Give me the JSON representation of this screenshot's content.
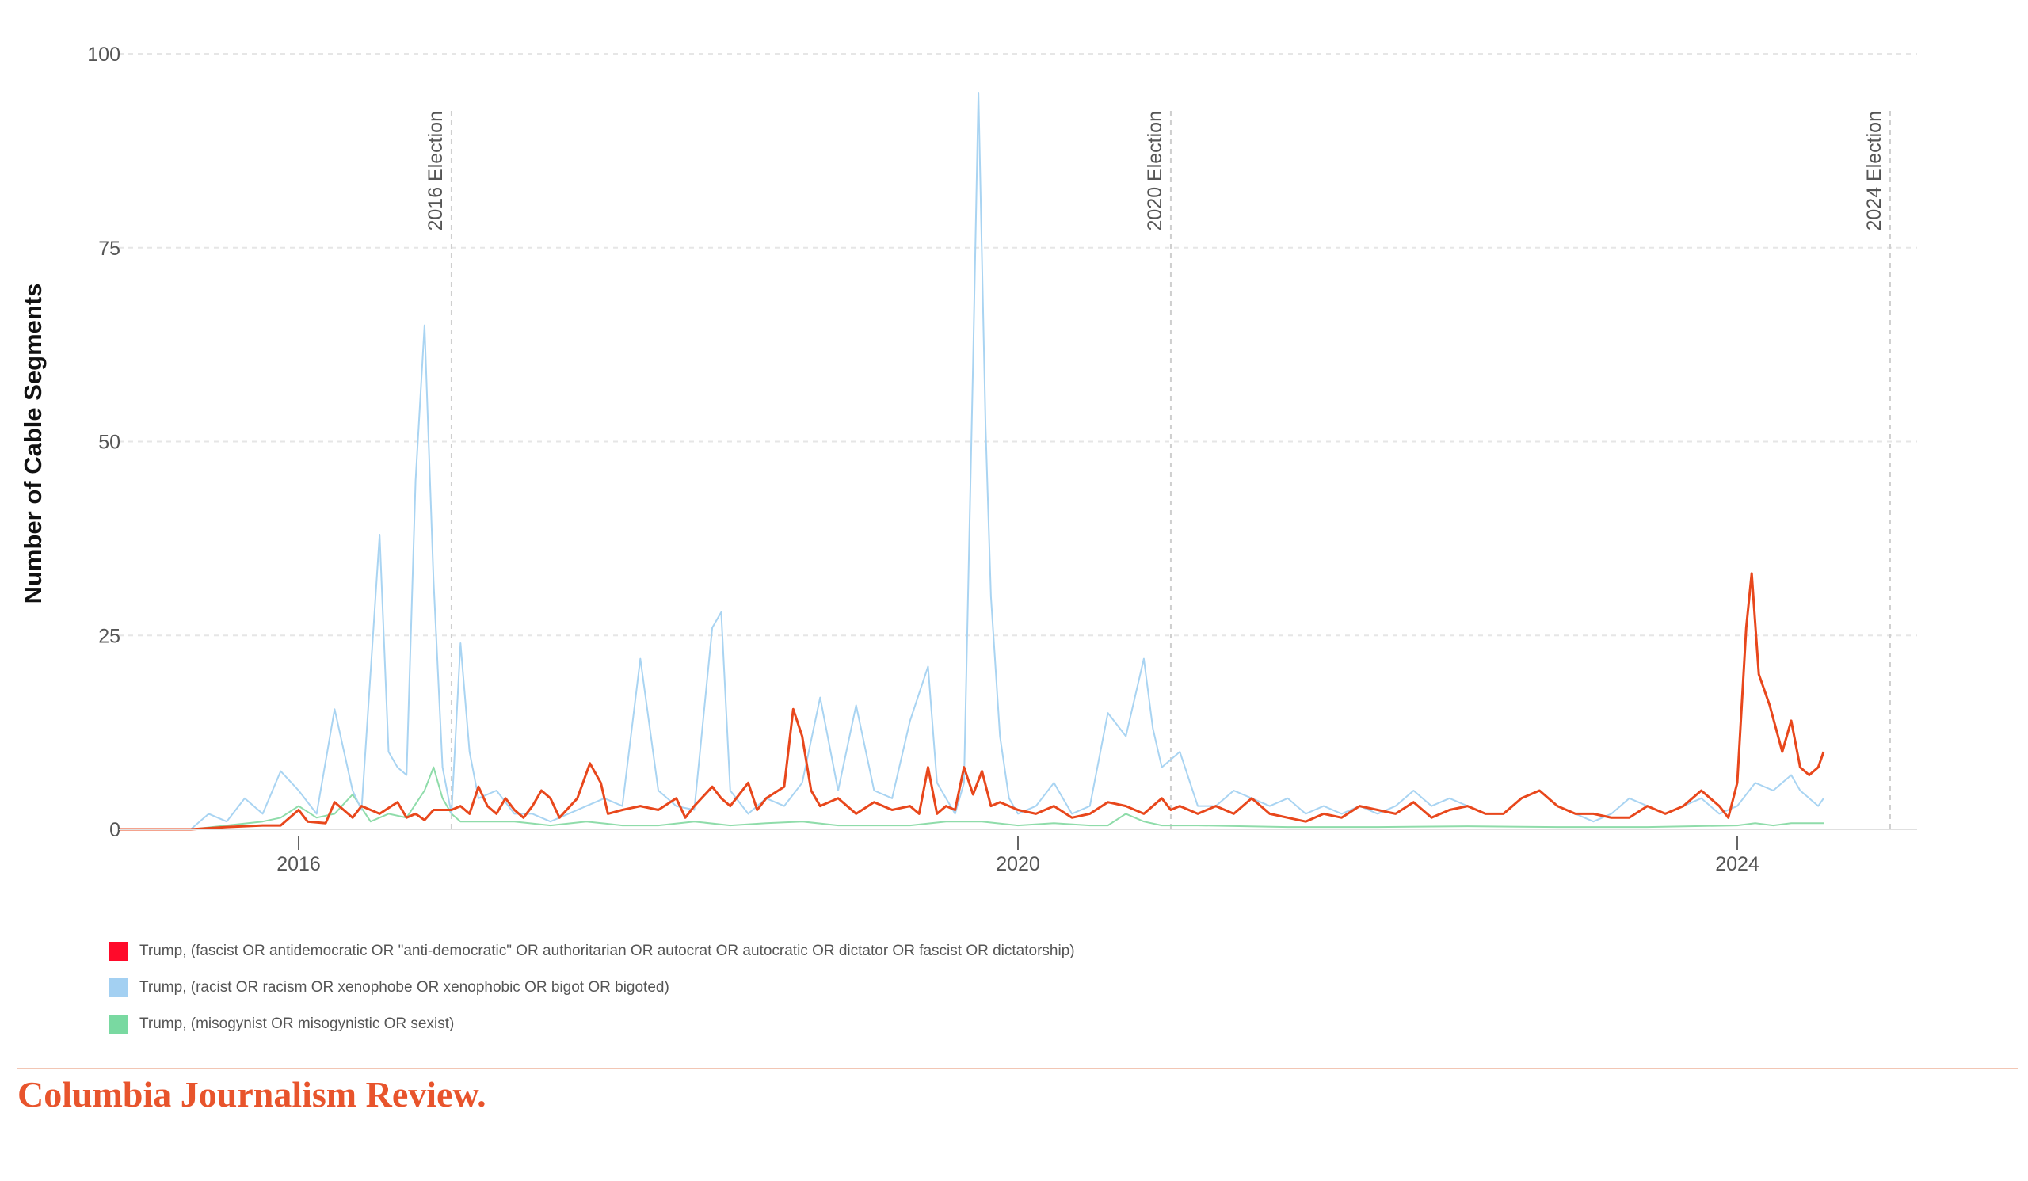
{
  "chart_data": {
    "type": "line",
    "title": "",
    "xlabel": "",
    "ylabel": "Number of Cable Segments",
    "ylim": [
      0,
      100
    ],
    "xlim": [
      2015.0,
      2025.0
    ],
    "y_ticks": [
      0,
      25,
      50,
      75,
      100
    ],
    "x_ticks": [
      {
        "value": 2016,
        "label": "2016"
      },
      {
        "value": 2020,
        "label": "2020"
      },
      {
        "value": 2024,
        "label": "2024"
      }
    ],
    "grid": "horizontal dashed",
    "annotations": [
      {
        "x": 2016.85,
        "label": "2016 Election"
      },
      {
        "x": 2020.85,
        "label": "2020 Election"
      },
      {
        "x": 2024.85,
        "label": "2024 Election"
      }
    ],
    "legend_position": "bottom-left",
    "series": [
      {
        "name": "Trump, (fascist OR antidemocratic OR \"anti-democratic\" OR authoritarian OR autocrat OR autocratic OR dictator OR fascist OR dictatorship)",
        "color": "#e8471c",
        "legend_color": "#ff0a2a",
        "points": [
          [
            2015.0,
            0
          ],
          [
            2015.4,
            0
          ],
          [
            2015.6,
            0.3
          ],
          [
            2015.8,
            0.5
          ],
          [
            2015.9,
            0.5
          ],
          [
            2016.0,
            2.5
          ],
          [
            2016.05,
            1
          ],
          [
            2016.15,
            0.8
          ],
          [
            2016.2,
            3.5
          ],
          [
            2016.3,
            1.5
          ],
          [
            2016.35,
            3
          ],
          [
            2016.45,
            2
          ],
          [
            2016.55,
            3.5
          ],
          [
            2016.6,
            1.5
          ],
          [
            2016.65,
            2
          ],
          [
            2016.7,
            1.2
          ],
          [
            2016.75,
            2.5
          ],
          [
            2016.85,
            2.5
          ],
          [
            2016.9,
            3
          ],
          [
            2016.95,
            2
          ],
          [
            2017.0,
            5.5
          ],
          [
            2017.05,
            3
          ],
          [
            2017.1,
            2
          ],
          [
            2017.15,
            4
          ],
          [
            2017.2,
            2.5
          ],
          [
            2017.25,
            1.5
          ],
          [
            2017.3,
            3
          ],
          [
            2017.35,
            5
          ],
          [
            2017.4,
            4
          ],
          [
            2017.45,
            1.5
          ],
          [
            2017.55,
            4
          ],
          [
            2017.62,
            8.5
          ],
          [
            2017.68,
            6
          ],
          [
            2017.72,
            2
          ],
          [
            2017.8,
            2.5
          ],
          [
            2017.9,
            3
          ],
          [
            2018.0,
            2.5
          ],
          [
            2018.1,
            4
          ],
          [
            2018.15,
            1.5
          ],
          [
            2018.2,
            3
          ],
          [
            2018.3,
            5.5
          ],
          [
            2018.35,
            4
          ],
          [
            2018.4,
            3
          ],
          [
            2018.5,
            6
          ],
          [
            2018.55,
            2.5
          ],
          [
            2018.6,
            4
          ],
          [
            2018.7,
            5.5
          ],
          [
            2018.75,
            15.5
          ],
          [
            2018.8,
            12
          ],
          [
            2018.85,
            5
          ],
          [
            2018.9,
            3
          ],
          [
            2019.0,
            4
          ],
          [
            2019.1,
            2
          ],
          [
            2019.2,
            3.5
          ],
          [
            2019.3,
            2.5
          ],
          [
            2019.4,
            3
          ],
          [
            2019.45,
            2
          ],
          [
            2019.5,
            8
          ],
          [
            2019.55,
            2
          ],
          [
            2019.6,
            3
          ],
          [
            2019.65,
            2.5
          ],
          [
            2019.7,
            8
          ],
          [
            2019.75,
            4.5
          ],
          [
            2019.8,
            7.5
          ],
          [
            2019.85,
            3
          ],
          [
            2019.9,
            3.5
          ],
          [
            2020.0,
            2.5
          ],
          [
            2020.1,
            2
          ],
          [
            2020.2,
            3
          ],
          [
            2020.3,
            1.5
          ],
          [
            2020.4,
            2
          ],
          [
            2020.5,
            3.5
          ],
          [
            2020.6,
            3
          ],
          [
            2020.7,
            2
          ],
          [
            2020.8,
            4
          ],
          [
            2020.85,
            2.5
          ],
          [
            2020.9,
            3
          ],
          [
            2021.0,
            2
          ],
          [
            2021.1,
            3
          ],
          [
            2021.2,
            2
          ],
          [
            2021.3,
            4
          ],
          [
            2021.4,
            2
          ],
          [
            2021.5,
            1.5
          ],
          [
            2021.6,
            1
          ],
          [
            2021.7,
            2
          ],
          [
            2021.8,
            1.5
          ],
          [
            2021.9,
            3
          ],
          [
            2022.0,
            2.5
          ],
          [
            2022.1,
            2
          ],
          [
            2022.2,
            3.5
          ],
          [
            2022.3,
            1.5
          ],
          [
            2022.4,
            2.5
          ],
          [
            2022.5,
            3
          ],
          [
            2022.6,
            2
          ],
          [
            2022.7,
            2
          ],
          [
            2022.8,
            4
          ],
          [
            2022.9,
            5
          ],
          [
            2023.0,
            3
          ],
          [
            2023.1,
            2
          ],
          [
            2023.2,
            2
          ],
          [
            2023.3,
            1.5
          ],
          [
            2023.4,
            1.5
          ],
          [
            2023.5,
            3
          ],
          [
            2023.6,
            2
          ],
          [
            2023.7,
            3
          ],
          [
            2023.8,
            5
          ],
          [
            2023.9,
            3
          ],
          [
            2023.95,
            1.5
          ],
          [
            2024.0,
            6
          ],
          [
            2024.05,
            26
          ],
          [
            2024.08,
            33
          ],
          [
            2024.12,
            20
          ],
          [
            2024.18,
            16
          ],
          [
            2024.25,
            10
          ],
          [
            2024.3,
            14
          ],
          [
            2024.35,
            8
          ],
          [
            2024.4,
            7
          ],
          [
            2024.45,
            8
          ],
          [
            2024.48,
            10
          ]
        ]
      },
      {
        "name": "Trump, (racist OR racism OR xenophobe OR xenophobic OR bigot OR bigoted)",
        "color": "#a9d4f2",
        "legend_color": "#a3d0f2",
        "points": [
          [
            2015.0,
            0
          ],
          [
            2015.4,
            0
          ],
          [
            2015.5,
            2
          ],
          [
            2015.6,
            1
          ],
          [
            2015.7,
            4
          ],
          [
            2015.8,
            2
          ],
          [
            2015.9,
            7.5
          ],
          [
            2016.0,
            5
          ],
          [
            2016.1,
            2
          ],
          [
            2016.2,
            15.5
          ],
          [
            2016.3,
            5
          ],
          [
            2016.35,
            2.5
          ],
          [
            2016.45,
            38
          ],
          [
            2016.5,
            10
          ],
          [
            2016.55,
            8
          ],
          [
            2016.6,
            7
          ],
          [
            2016.65,
            45
          ],
          [
            2016.7,
            65
          ],
          [
            2016.75,
            32
          ],
          [
            2016.8,
            8
          ],
          [
            2016.85,
            2
          ],
          [
            2016.9,
            24
          ],
          [
            2016.95,
            10
          ],
          [
            2017.0,
            4
          ],
          [
            2017.1,
            5
          ],
          [
            2017.2,
            2
          ],
          [
            2017.3,
            2
          ],
          [
            2017.4,
            1
          ],
          [
            2017.5,
            2
          ],
          [
            2017.6,
            3
          ],
          [
            2017.7,
            4
          ],
          [
            2017.8,
            3
          ],
          [
            2017.9,
            22
          ],
          [
            2018.0,
            5
          ],
          [
            2018.1,
            3
          ],
          [
            2018.2,
            2.5
          ],
          [
            2018.3,
            26
          ],
          [
            2018.35,
            28
          ],
          [
            2018.4,
            5
          ],
          [
            2018.5,
            2
          ],
          [
            2018.6,
            4
          ],
          [
            2018.7,
            3
          ],
          [
            2018.8,
            6
          ],
          [
            2018.9,
            17
          ],
          [
            2019.0,
            5
          ],
          [
            2019.1,
            16
          ],
          [
            2019.2,
            5
          ],
          [
            2019.3,
            4
          ],
          [
            2019.4,
            14
          ],
          [
            2019.5,
            21
          ],
          [
            2019.55,
            6
          ],
          [
            2019.6,
            4
          ],
          [
            2019.65,
            2
          ],
          [
            2019.7,
            6
          ],
          [
            2019.75,
            60
          ],
          [
            2019.78,
            95
          ],
          [
            2019.82,
            52
          ],
          [
            2019.85,
            30
          ],
          [
            2019.9,
            12
          ],
          [
            2019.95,
            4
          ],
          [
            2020.0,
            2
          ],
          [
            2020.1,
            3
          ],
          [
            2020.2,
            6
          ],
          [
            2020.3,
            2
          ],
          [
            2020.4,
            3
          ],
          [
            2020.5,
            15
          ],
          [
            2020.6,
            12
          ],
          [
            2020.7,
            22
          ],
          [
            2020.75,
            13
          ],
          [
            2020.8,
            8
          ],
          [
            2020.9,
            10
          ],
          [
            2021.0,
            3
          ],
          [
            2021.1,
            3
          ],
          [
            2021.2,
            5
          ],
          [
            2021.3,
            4
          ],
          [
            2021.4,
            3
          ],
          [
            2021.5,
            4
          ],
          [
            2021.6,
            2
          ],
          [
            2021.7,
            3
          ],
          [
            2021.8,
            2
          ],
          [
            2021.9,
            3
          ],
          [
            2022.0,
            2
          ],
          [
            2022.1,
            3
          ],
          [
            2022.2,
            5
          ],
          [
            2022.3,
            3
          ],
          [
            2022.4,
            4
          ],
          [
            2022.5,
            3
          ],
          [
            2022.6,
            2
          ],
          [
            2022.7,
            2
          ],
          [
            2022.8,
            4
          ],
          [
            2022.9,
            5
          ],
          [
            2023.0,
            3
          ],
          [
            2023.1,
            2
          ],
          [
            2023.2,
            1
          ],
          [
            2023.3,
            2
          ],
          [
            2023.4,
            4
          ],
          [
            2023.5,
            3
          ],
          [
            2023.6,
            2
          ],
          [
            2023.7,
            3
          ],
          [
            2023.8,
            4
          ],
          [
            2023.9,
            2
          ],
          [
            2024.0,
            3
          ],
          [
            2024.1,
            6
          ],
          [
            2024.2,
            5
          ],
          [
            2024.3,
            7
          ],
          [
            2024.35,
            5
          ],
          [
            2024.4,
            4
          ],
          [
            2024.45,
            3
          ],
          [
            2024.48,
            4
          ]
        ]
      },
      {
        "name": "Trump, (misogynist OR misogynistic OR sexist)",
        "color": "#8fdcaa",
        "legend_color": "#79d9a1",
        "points": [
          [
            2015.0,
            0
          ],
          [
            2015.4,
            0
          ],
          [
            2015.6,
            0.5
          ],
          [
            2015.8,
            1
          ],
          [
            2015.9,
            1.5
          ],
          [
            2016.0,
            3
          ],
          [
            2016.1,
            1.5
          ],
          [
            2016.2,
            2
          ],
          [
            2016.3,
            4.5
          ],
          [
            2016.4,
            1
          ],
          [
            2016.5,
            2
          ],
          [
            2016.6,
            1.5
          ],
          [
            2016.7,
            5
          ],
          [
            2016.75,
            8
          ],
          [
            2016.8,
            4
          ],
          [
            2016.85,
            2
          ],
          [
            2016.9,
            1
          ],
          [
            2017.0,
            1
          ],
          [
            2017.2,
            1
          ],
          [
            2017.4,
            0.5
          ],
          [
            2017.6,
            1
          ],
          [
            2017.8,
            0.5
          ],
          [
            2018.0,
            0.5
          ],
          [
            2018.2,
            1
          ],
          [
            2018.4,
            0.5
          ],
          [
            2018.6,
            0.8
          ],
          [
            2018.8,
            1
          ],
          [
            2019.0,
            0.5
          ],
          [
            2019.2,
            0.5
          ],
          [
            2019.4,
            0.5
          ],
          [
            2019.6,
            1
          ],
          [
            2019.8,
            1
          ],
          [
            2020.0,
            0.5
          ],
          [
            2020.2,
            0.8
          ],
          [
            2020.4,
            0.5
          ],
          [
            2020.5,
            0.5
          ],
          [
            2020.6,
            2
          ],
          [
            2020.7,
            1
          ],
          [
            2020.8,
            0.5
          ],
          [
            2021.0,
            0.5
          ],
          [
            2021.5,
            0.3
          ],
          [
            2022.0,
            0.3
          ],
          [
            2022.5,
            0.4
          ],
          [
            2023.0,
            0.3
          ],
          [
            2023.5,
            0.3
          ],
          [
            2024.0,
            0.5
          ],
          [
            2024.1,
            0.8
          ],
          [
            2024.2,
            0.5
          ],
          [
            2024.3,
            0.8
          ],
          [
            2024.48,
            0.8
          ]
        ]
      }
    ]
  },
  "brand": "Columbia Journalism Review."
}
